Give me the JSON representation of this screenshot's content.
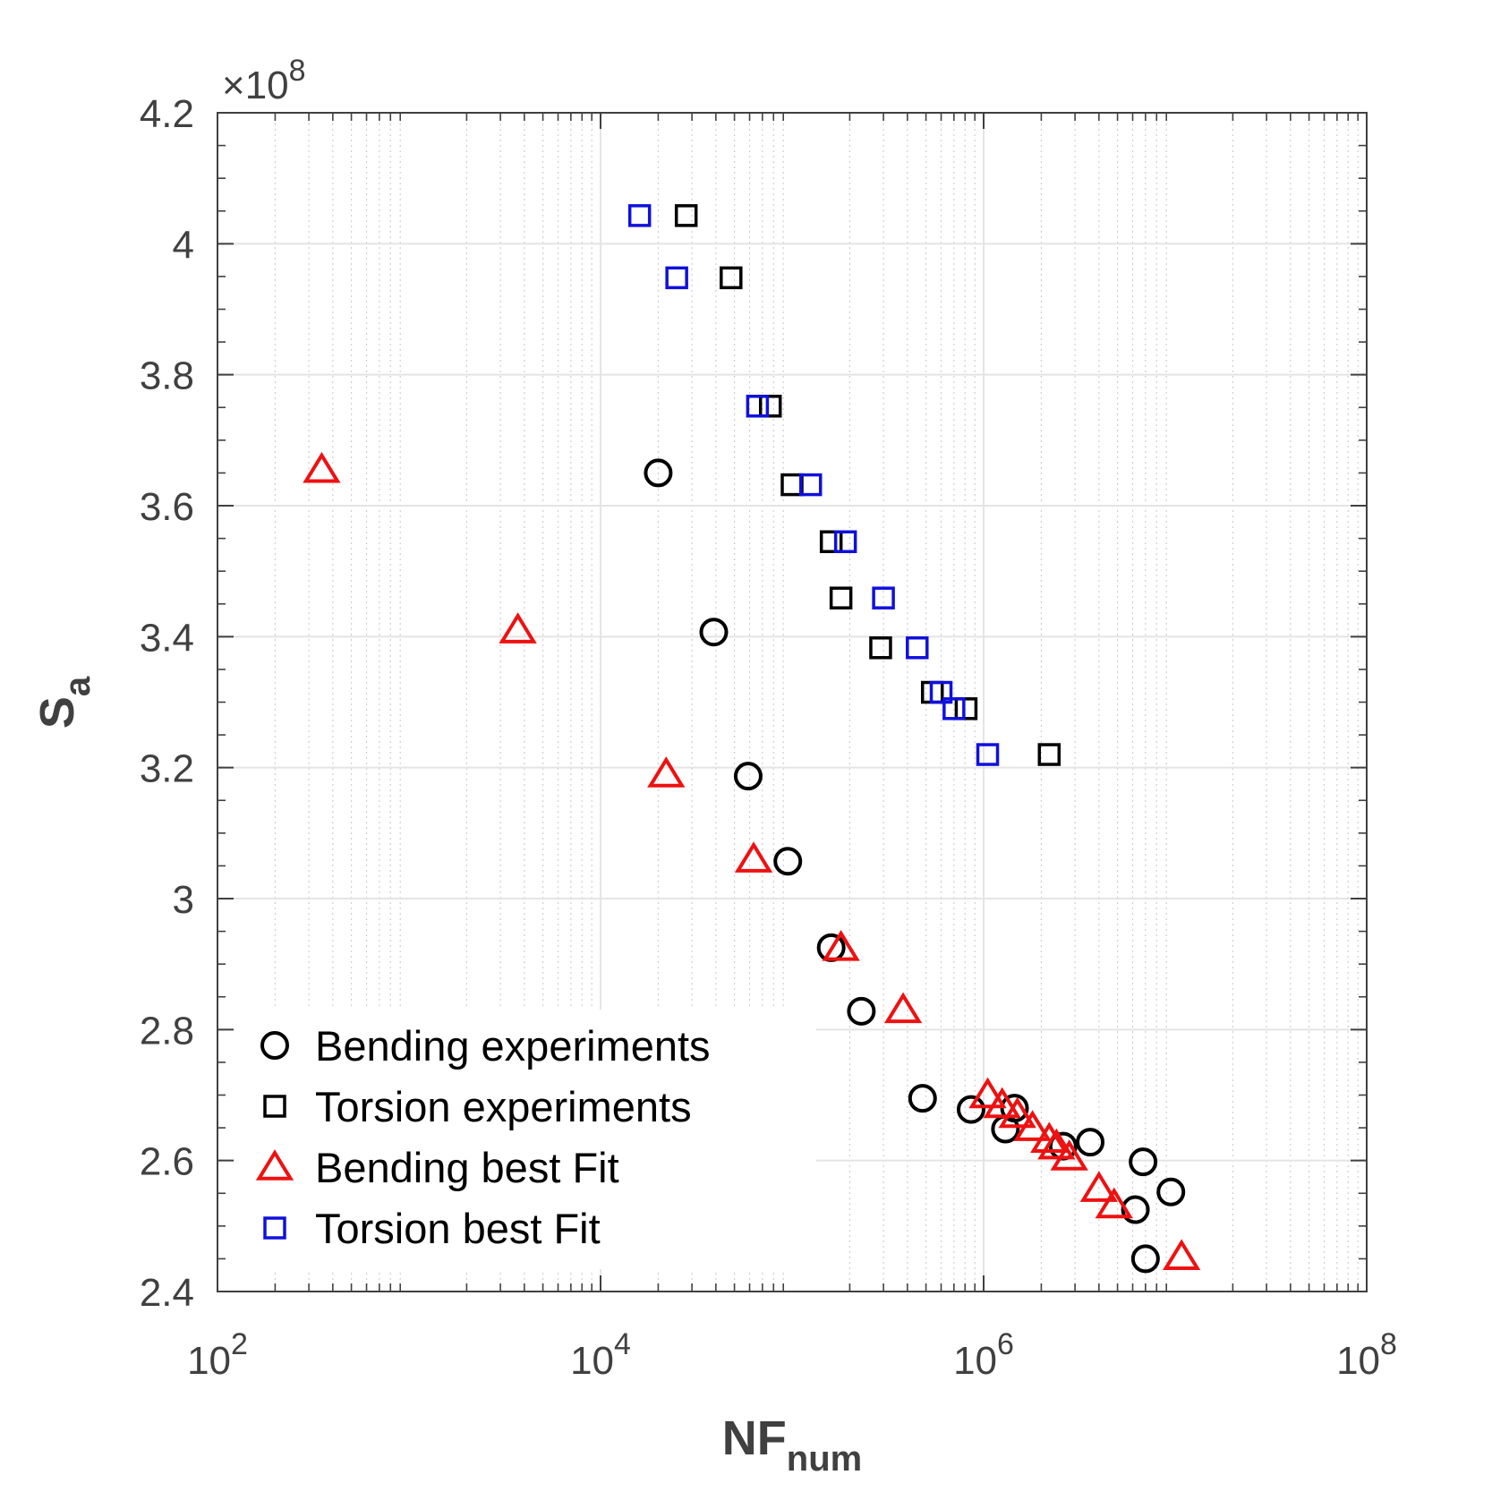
{
  "chart_data": {
    "type": "scatter",
    "xscale": "log",
    "xlim": [
      100,
      100000000
    ],
    "ylim": [
      240000000,
      420000000
    ],
    "xlabel": "NF",
    "xlabel_sub": "num",
    "ylabel": "S",
    "ylabel_sub": "a",
    "y_multiplier": "×10",
    "y_multiplier_exp": "8",
    "x_ticks": [
      {
        "value": 100,
        "base": "10",
        "exp": "2"
      },
      {
        "value": 10000,
        "base": "10",
        "exp": "4"
      },
      {
        "value": 1000000,
        "base": "10",
        "exp": "6"
      },
      {
        "value": 100000000,
        "base": "10",
        "exp": "8"
      }
    ],
    "y_ticks": [
      {
        "value": 240000000,
        "label": "2.4"
      },
      {
        "value": 260000000,
        "label": "2.6"
      },
      {
        "value": 280000000,
        "label": "2.8"
      },
      {
        "value": 300000000,
        "label": "3"
      },
      {
        "value": 320000000,
        "label": "3.2"
      },
      {
        "value": 340000000,
        "label": "3.4"
      },
      {
        "value": 360000000,
        "label": "3.6"
      },
      {
        "value": 380000000,
        "label": "3.8"
      },
      {
        "value": 400000000,
        "label": "4"
      },
      {
        "value": 420000000,
        "label": "4.2"
      }
    ],
    "grid": true,
    "legend_position": "bottom-left",
    "series": [
      {
        "name": "Bending experiments",
        "marker": "circle",
        "color": "#000000",
        "x": [
          20000,
          39000,
          59000,
          95000,
          160000,
          230000,
          480000,
          860000,
          1300000,
          1450000,
          2600000,
          3600000,
          6200000,
          6800000,
          7000000,
          9500000
        ],
        "y": [
          365000000,
          340700000,
          318700000,
          305700000,
          292500000,
          282800000,
          269500000,
          267800000,
          264800000,
          268000000,
          262200000,
          262800000,
          252500000,
          259800000,
          245000000,
          255200000
        ]
      },
      {
        "name": "Torsion experiments",
        "marker": "square",
        "color": "#000000",
        "x": [
          28000,
          48000,
          77000,
          100000,
          160000,
          180000,
          290000,
          540000,
          810000,
          2200000
        ],
        "y": [
          404300000,
          394800000,
          375200000,
          363200000,
          354500000,
          345900000,
          338300000,
          331500000,
          329000000,
          322000000
        ]
      },
      {
        "name": "Bending best Fit",
        "marker": "triangle",
        "color": "#ee1111",
        "x": [
          350,
          3700,
          22000,
          63000,
          180000,
          380000,
          1050000,
          1250000,
          1500000,
          1800000,
          2200000,
          2400000,
          2800000,
          4000000,
          4800000,
          10800000
        ],
        "y": [
          365500000,
          341000000,
          319000000,
          306000000,
          292500000,
          283000000,
          270000000,
          268500000,
          267000000,
          265000000,
          263200000,
          262200000,
          260500000,
          255700000,
          253200000,
          245300000
        ]
      },
      {
        "name": "Torsion best Fit",
        "marker": "square",
        "color": "#1010dd",
        "x": [
          16000,
          25000,
          66000,
          125000,
          190000,
          300000,
          450000,
          600000,
          700000,
          1050000
        ],
        "y": [
          404300000,
          394800000,
          375200000,
          363200000,
          354500000,
          345900000,
          338300000,
          331500000,
          329000000,
          322000000
        ]
      }
    ]
  }
}
